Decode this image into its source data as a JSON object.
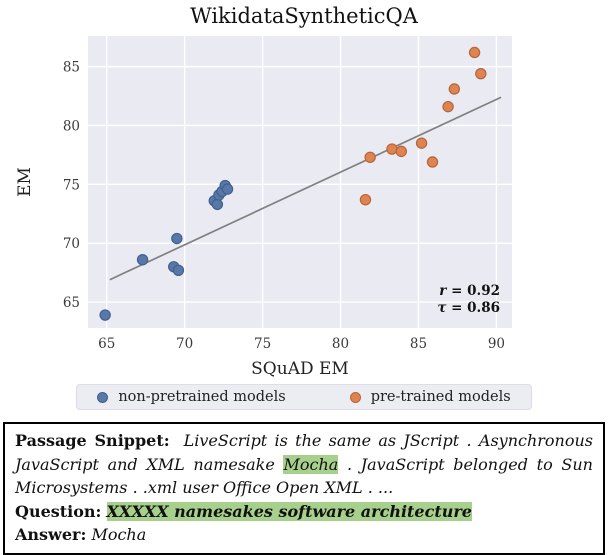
{
  "chart_data": {
    "type": "scatter",
    "title": "WikidataSyntheticQA",
    "xlabel": "SQuAD EM",
    "ylabel": "EM",
    "xlim": [
      63.8,
      91.0
    ],
    "ylim": [
      62.8,
      87.6
    ],
    "x_ticks": [
      65,
      70,
      75,
      80,
      85,
      90
    ],
    "y_ticks": [
      65,
      70,
      75,
      80,
      85
    ],
    "grid": true,
    "legend_position": "bottom",
    "plot_bg": "#eaeaf2",
    "series": [
      {
        "name": "non-pretrained models",
        "color": "#5878a8",
        "edge": "#41608e",
        "points": [
          [
            64.9,
            63.9
          ],
          [
            67.3,
            68.6
          ],
          [
            69.3,
            68.0
          ],
          [
            69.6,
            67.7
          ],
          [
            69.5,
            70.4
          ],
          [
            71.9,
            73.6
          ],
          [
            72.1,
            73.3
          ],
          [
            72.2,
            74.1
          ],
          [
            72.4,
            74.4
          ],
          [
            72.6,
            74.9
          ],
          [
            72.75,
            74.6
          ]
        ]
      },
      {
        "name": "pre-trained models",
        "color": "#dd8452",
        "edge": "#b86438",
        "points": [
          [
            81.6,
            73.7
          ],
          [
            81.9,
            77.3
          ],
          [
            83.3,
            78.0
          ],
          [
            83.9,
            77.8
          ],
          [
            85.2,
            78.5
          ],
          [
            85.9,
            76.9
          ],
          [
            86.9,
            81.6
          ],
          [
            87.3,
            83.1
          ],
          [
            88.6,
            86.2
          ],
          [
            89.0,
            84.4
          ]
        ]
      }
    ],
    "trendline": {
      "x1": 65.2,
      "y1": 66.9,
      "x2": 90.3,
      "y2": 82.4,
      "color": "#808080"
    },
    "annotations": [
      {
        "label": "r",
        "value": " = 0.92"
      },
      {
        "label": "τ",
        "value": " = 0.86"
      }
    ]
  },
  "legend": {
    "items": [
      {
        "label": "non-pretrained models"
      },
      {
        "label": "pre-trained models"
      }
    ]
  },
  "passage": {
    "label": "Passage Snippet:",
    "part1": "LiveScript is the same as JScript .  Asynchronous JavaScript and XML namesake ",
    "highlight": "Mocha",
    "part2": " . JavaScript belonged to Sun Microsystems . .xml user Office Open XML . ..."
  },
  "question": {
    "label": "Question:",
    "text": "XXXXX namesakes software architecture"
  },
  "answer": {
    "label": "Answer:",
    "text": "Mocha"
  }
}
